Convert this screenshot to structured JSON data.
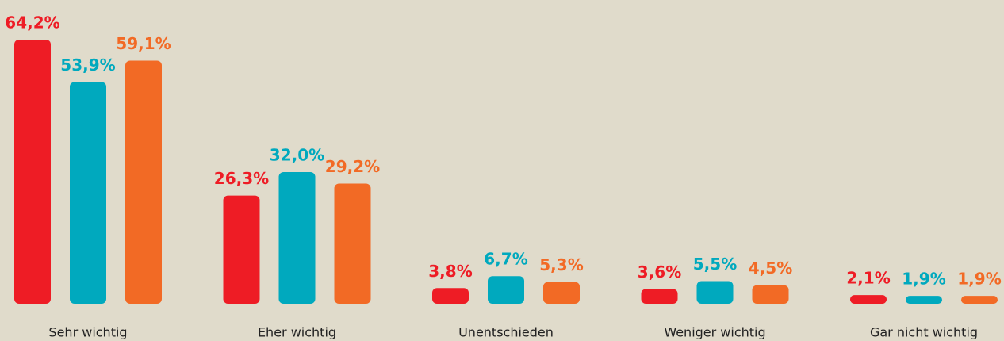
{
  "chart_data": {
    "type": "bar",
    "categories": [
      "Sehr wichtig",
      "Eher wichtig",
      "Unentschieden",
      "Weniger wichtig",
      "Gar nicht wichtig"
    ],
    "series": [
      {
        "color": "#ee1c25",
        "values": [
          64.2,
          26.3,
          3.8,
          3.6,
          2.1
        ],
        "value_labels": [
          "64,2%",
          "26,3%",
          "3,8%",
          "3,6%",
          "2,1%"
        ]
      },
      {
        "color": "#00a9be",
        "values": [
          53.9,
          32.0,
          6.7,
          5.5,
          1.9
        ],
        "value_labels": [
          "53,9%",
          "32,0%",
          "6,7%",
          "5,5%",
          "1,9%"
        ]
      },
      {
        "color": "#f26a25",
        "values": [
          59.1,
          29.2,
          5.3,
          4.5,
          1.9
        ],
        "value_labels": [
          "59,1%",
          "29,2%",
          "5,3%",
          "4,5%",
          "1,9%"
        ]
      }
    ]
  }
}
